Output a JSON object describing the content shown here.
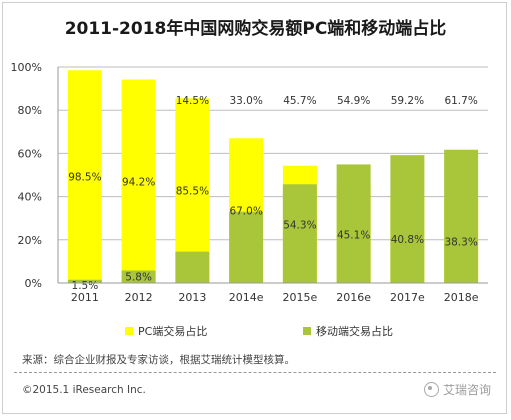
{
  "chart_data": {
    "type": "bar",
    "stacked": true,
    "title": "2011-2018年中国网购交易额PC端和移动端占比",
    "categories": [
      "2011",
      "2012",
      "2013",
      "2014e",
      "2015e",
      "2016e",
      "2017e",
      "2018e"
    ],
    "series": [
      {
        "name": "PC端交易占比",
        "color": "#ffff00",
        "values": [
          98.5,
          94.2,
          85.5,
          67.0,
          54.3,
          45.1,
          40.8,
          38.3
        ],
        "labels": [
          "98.5%",
          "94.2%",
          "85.5%",
          "67.0%",
          "54.3%",
          "45.1%",
          "40.8%",
          "38.3%"
        ]
      },
      {
        "name": "移动端交易占比",
        "color": "#a9c63a",
        "values": [
          1.5,
          5.8,
          14.5,
          33.0,
          45.7,
          54.9,
          59.2,
          61.7
        ],
        "labels": [
          "1.5%",
          "5.8%",
          "14.5%",
          "33.0%",
          "45.7%",
          "54.9%",
          "59.2%",
          "61.7%"
        ]
      }
    ],
    "yticks": [
      "0%",
      "20%",
      "40%",
      "60%",
      "80%",
      "100%"
    ],
    "ylim": [
      0,
      100
    ],
    "grid": true,
    "legend_position": "bottom"
  },
  "source_note": "来源：综合企业财报及专家访谈，根据艾瑞统计模型核算。",
  "copyright": "©2015.1 iResearch Inc.",
  "watermark": "艾瑞咨询"
}
